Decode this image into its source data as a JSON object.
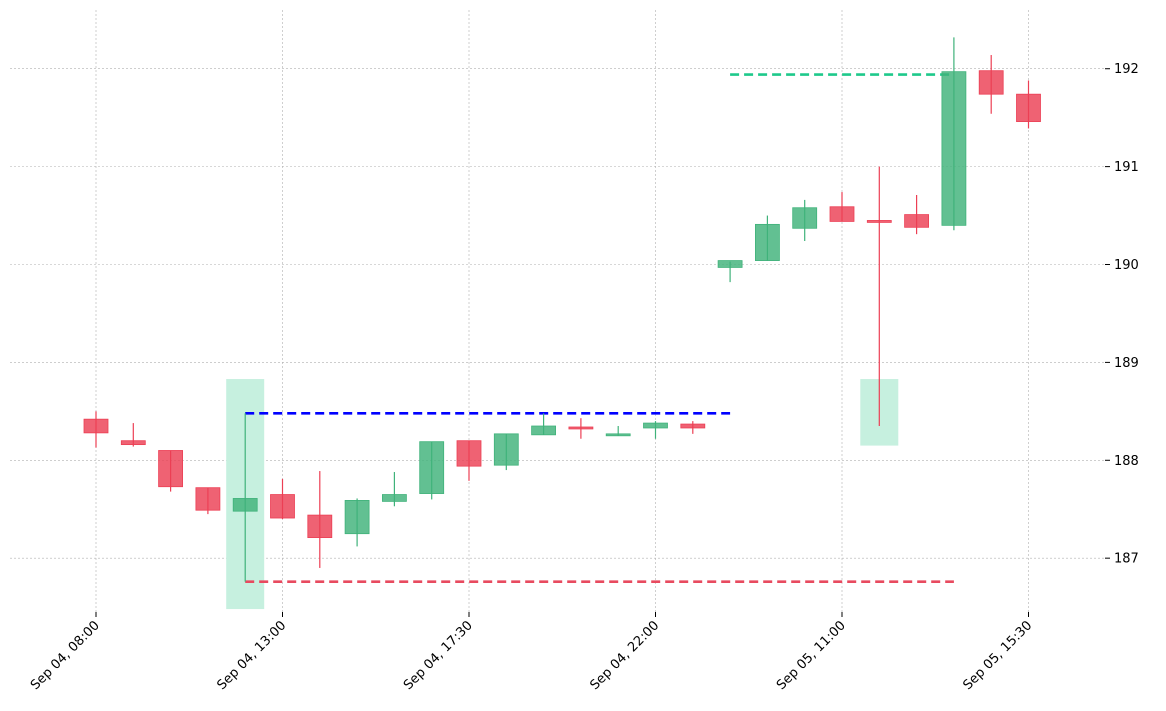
{
  "chart_data": {
    "type": "candlestick",
    "title": "",
    "xlabel": "",
    "ylabel": "",
    "ylim": [
      186.45,
      192.6
    ],
    "y_ticks": [
      187,
      188,
      189,
      190,
      191,
      192
    ],
    "x_ticks": [
      {
        "index": 0,
        "label": "Sep 04, 08:00"
      },
      {
        "index": 5,
        "label": "Sep 04, 13:00"
      },
      {
        "index": 10,
        "label": "Sep 04, 17:30"
      },
      {
        "index": 15,
        "label": "Sep 04, 22:00"
      },
      {
        "index": 20,
        "label": "Sep 05, 11:00"
      },
      {
        "index": 25,
        "label": "Sep 05, 15:30"
      }
    ],
    "grid": true,
    "candles": [
      {
        "open": 188.42,
        "high": 188.5,
        "low": 188.13,
        "close": 188.28
      },
      {
        "open": 188.2,
        "high": 188.38,
        "low": 188.14,
        "close": 188.16
      },
      {
        "open": 188.1,
        "high": 188.1,
        "low": 187.68,
        "close": 187.73
      },
      {
        "open": 187.72,
        "high": 187.72,
        "low": 187.45,
        "close": 187.49
      },
      {
        "open": 187.48,
        "high": 188.48,
        "low": 186.76,
        "close": 187.61
      },
      {
        "open": 187.65,
        "high": 187.81,
        "low": 187.4,
        "close": 187.41
      },
      {
        "open": 187.44,
        "high": 187.89,
        "low": 186.9,
        "close": 187.21
      },
      {
        "open": 187.25,
        "high": 187.61,
        "low": 187.12,
        "close": 187.59
      },
      {
        "open": 187.58,
        "high": 187.88,
        "low": 187.53,
        "close": 187.65
      },
      {
        "open": 187.66,
        "high": 188.19,
        "low": 187.6,
        "close": 188.19
      },
      {
        "open": 188.2,
        "high": 188.2,
        "low": 187.79,
        "close": 187.94
      },
      {
        "open": 187.95,
        "high": 188.27,
        "low": 187.9,
        "close": 188.27
      },
      {
        "open": 188.26,
        "high": 188.48,
        "low": 188.26,
        "close": 188.35
      },
      {
        "open": 188.34,
        "high": 188.43,
        "low": 188.22,
        "close": 188.32
      },
      {
        "open": 188.25,
        "high": 188.35,
        "low": 188.25,
        "close": 188.27
      },
      {
        "open": 188.33,
        "high": 188.4,
        "low": 188.22,
        "close": 188.38
      },
      {
        "open": 188.37,
        "high": 188.4,
        "low": 188.27,
        "close": 188.33
      },
      {
        "open": 189.97,
        "high": 190.03,
        "low": 189.82,
        "close": 190.04
      },
      {
        "open": 190.04,
        "high": 190.5,
        "low": 190.04,
        "close": 190.41
      },
      {
        "open": 190.37,
        "high": 190.66,
        "low": 190.24,
        "close": 190.58
      },
      {
        "open": 190.59,
        "high": 190.74,
        "low": 190.44,
        "close": 190.44
      },
      {
        "open": 190.45,
        "high": 191.0,
        "low": 188.35,
        "close": 190.43
      },
      {
        "open": 190.51,
        "high": 190.71,
        "low": 190.31,
        "close": 190.38
      },
      {
        "open": 190.4,
        "high": 192.32,
        "low": 190.35,
        "close": 191.97
      },
      {
        "open": 191.98,
        "high": 192.14,
        "low": 191.54,
        "close": 191.74
      },
      {
        "open": 191.74,
        "high": 191.88,
        "low": 191.39,
        "close": 191.46
      }
    ],
    "highlights": [
      {
        "index": 4,
        "y_from": 186.48,
        "y_to": 188.83
      },
      {
        "index": 21,
        "y_from": 188.15,
        "y_to": 188.83
      }
    ],
    "levels": [
      {
        "name": "resistance",
        "y": 188.48,
        "from_index": 4,
        "to_index": 17,
        "color": "#0000ff"
      },
      {
        "name": "support",
        "y": 186.76,
        "from_index": 4,
        "to_index": 23,
        "color": "#e84a5f"
      },
      {
        "name": "target",
        "y": 191.94,
        "from_index": 17,
        "to_index": 23,
        "color": "#1ec98b"
      }
    ],
    "colors": {
      "up": "#3fb27a",
      "down": "#ec3f54",
      "highlight": "#c6f0df",
      "grid": "#b0b0b0"
    }
  }
}
